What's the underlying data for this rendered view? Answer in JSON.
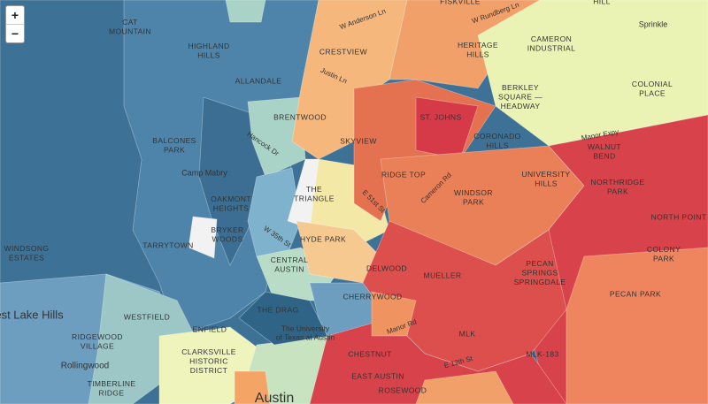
{
  "controls": {
    "zoom_in": "+",
    "zoom_out": "−"
  },
  "neighborhoods": [
    {
      "lines": [
        "CAT",
        "MOUNTAIN"
      ]
    },
    {
      "lines": [
        "HIGHLAND",
        "HILLS"
      ]
    },
    {
      "lines": [
        "ALLANDALE"
      ]
    },
    {
      "lines": [
        "CRESTVIEW"
      ]
    },
    {
      "lines": [
        "HERITAGE",
        "HILLS"
      ]
    },
    {
      "lines": [
        "CAMERON",
        "INDUSTRIAL"
      ]
    },
    {
      "lines": [
        "COLONIAL",
        "PLACE"
      ]
    },
    {
      "lines": [
        "BERKLEY",
        "SQUARE —",
        "HEADWAY"
      ]
    },
    {
      "lines": [
        "ST. JOHNS"
      ]
    },
    {
      "lines": [
        "BRENTWOOD"
      ]
    },
    {
      "lines": [
        "SKYVIEW"
      ]
    },
    {
      "lines": [
        "CORONADO",
        "HILLS"
      ]
    },
    {
      "lines": [
        "WALNUT",
        "BEND"
      ]
    },
    {
      "lines": [
        "BALCONES",
        "PARK"
      ]
    },
    {
      "lines": [
        "RIDGE TOP"
      ]
    },
    {
      "lines": [
        "UNIVERSITY",
        "HILLS"
      ]
    },
    {
      "lines": [
        "NORTHRIDGE",
        "PARK"
      ]
    },
    {
      "lines": [
        "THE",
        "TRIANGLE"
      ]
    },
    {
      "lines": [
        "WINDSOR",
        "PARK"
      ]
    },
    {
      "lines": [
        "NORTH POINT"
      ]
    },
    {
      "lines": [
        "OAKMONT",
        "HEIGHTS"
      ]
    },
    {
      "lines": [
        "BRYKER",
        "WOODS"
      ]
    },
    {
      "lines": [
        "TARRYTOWN"
      ]
    },
    {
      "lines": [
        "HYDE PARK"
      ]
    },
    {
      "lines": [
        "COLONY",
        "PARK"
      ]
    },
    {
      "lines": [
        "WINDSONG",
        "ESTATES"
      ]
    },
    {
      "lines": [
        "CENTRAL",
        "AUSTIN"
      ]
    },
    {
      "lines": [
        "DELWOOD"
      ]
    },
    {
      "lines": [
        "MUELLER"
      ]
    },
    {
      "lines": [
        "PECAN",
        "SPRINGS",
        "SPRINGDALE"
      ]
    },
    {
      "lines": [
        "PECAN PARK"
      ]
    },
    {
      "lines": [
        "CHERRYWOOD"
      ]
    },
    {
      "lines": [
        "WESTFIELD"
      ]
    },
    {
      "lines": [
        "THE DRAG"
      ]
    },
    {
      "lines": [
        "ENFIELD"
      ]
    },
    {
      "lines": [
        "RIDGEWOOD",
        "VILLAGE"
      ]
    },
    {
      "lines": [
        "CLARKSVILLE",
        "HISTORIC",
        "DISTRICT"
      ]
    },
    {
      "lines": [
        "CHESTNUT"
      ]
    },
    {
      "lines": [
        "MLK"
      ]
    },
    {
      "lines": [
        "MLK-183"
      ]
    },
    {
      "lines": [
        "EAST AUSTIN"
      ]
    },
    {
      "lines": [
        "TIMBERLINE",
        "RIDGE"
      ]
    },
    {
      "lines": [
        "ROSEWOOD"
      ]
    },
    {
      "lines": [
        "FISKVILLE"
      ]
    },
    {
      "lines": [
        "HILL"
      ]
    }
  ],
  "places": [
    {
      "lines": [
        "Camp Mabry"
      ]
    },
    {
      "lines": [
        "est Lake Hills"
      ]
    },
    {
      "lines": [
        "Rollingwood"
      ]
    },
    {
      "lines": [
        "Sprinkle"
      ]
    },
    {
      "lines": [
        "Austin"
      ]
    },
    {
      "lines": [
        "The University",
        "of Texas at Austin"
      ]
    }
  ],
  "streets": [
    "W Anderson Ln",
    "Justin Ln",
    "Hancock Dr",
    "W 35th St",
    "E 51st St",
    "Cameron Rd",
    "Manor Rd",
    "E 12th St",
    "Manor Expy",
    "W Rundberg Ln"
  ]
}
